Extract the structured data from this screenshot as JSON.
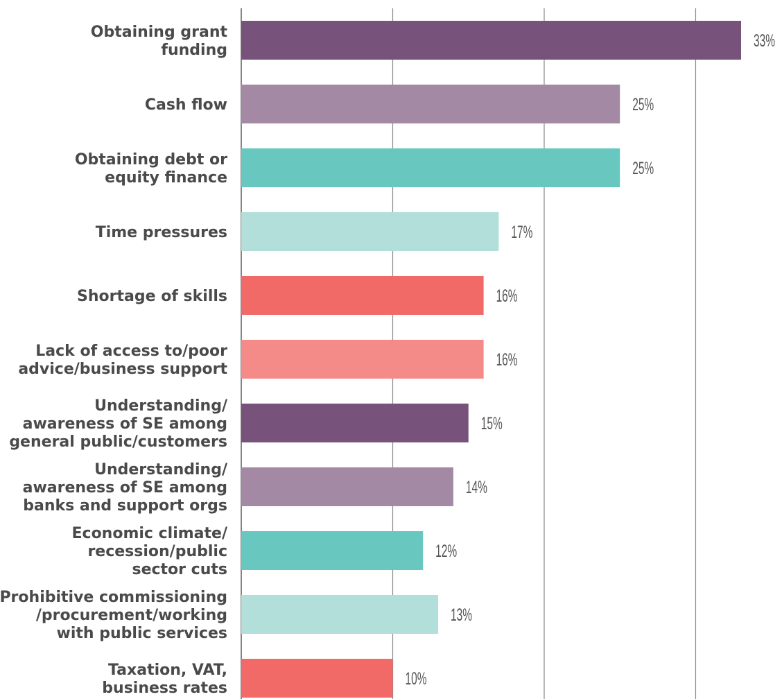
{
  "chart_data": {
    "type": "hbar",
    "categories": [
      [
        "Obtaining grant",
        "funding"
      ],
      [
        "Cash flow"
      ],
      [
        "Obtaining debt or",
        "equity finance"
      ],
      [
        "Time pressures"
      ],
      [
        "Shortage of skills"
      ],
      [
        "Lack of access to/poor",
        "advice/business support"
      ],
      [
        "Understanding/",
        "awareness of SE among",
        "general public/customers"
      ],
      [
        "Understanding/",
        "awareness of SE among",
        "banks and support orgs"
      ],
      [
        "Economic climate/",
        "recession/public",
        "sector cuts"
      ],
      [
        "Prohibitive commissioning",
        "/procurement/working",
        "with public services"
      ],
      [
        "Taxation, VAT,",
        "business rates"
      ]
    ],
    "values": [
      33,
      25,
      25,
      17,
      16,
      16,
      15,
      14,
      12,
      13,
      10
    ],
    "value_labels": [
      "33%",
      "25%",
      "25%",
      "17%",
      "16%",
      "16%",
      "15%",
      "14%",
      "12%",
      "13%",
      "10%"
    ],
    "colors": [
      "#77527a",
      "#a389a4",
      "#68c8bf",
      "#b2dfda",
      "#f26a68",
      "#f48b89",
      "#77527a",
      "#a389a4",
      "#68c8bf",
      "#b2dfda",
      "#f26a68"
    ],
    "xlim": [
      0,
      35.7
    ],
    "xticks": [
      0,
      10,
      20,
      30
    ],
    "grid": true
  }
}
